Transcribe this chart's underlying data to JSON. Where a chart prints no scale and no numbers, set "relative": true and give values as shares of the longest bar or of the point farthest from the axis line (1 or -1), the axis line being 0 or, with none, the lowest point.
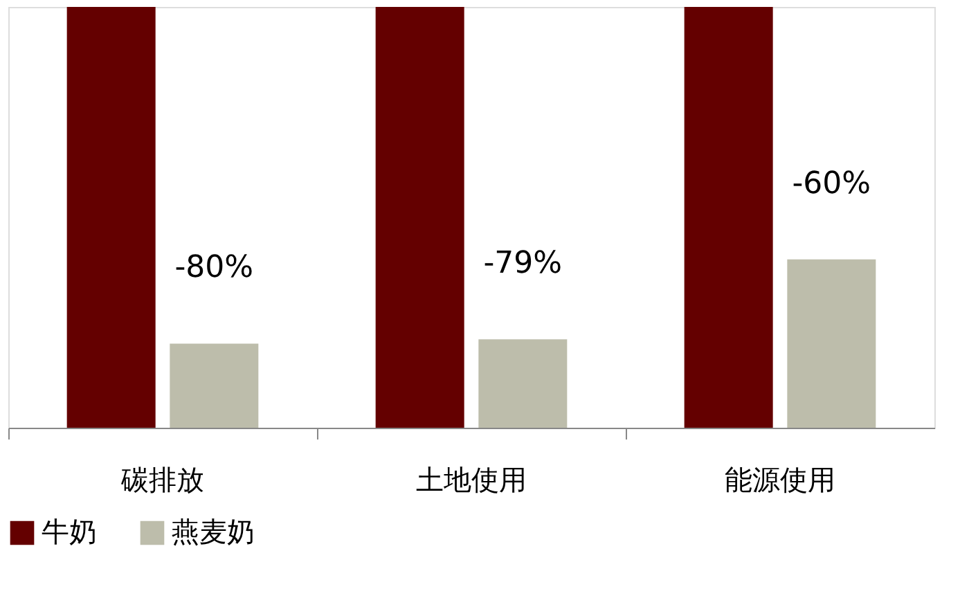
{
  "chart_data": {
    "type": "bar",
    "relative": true,
    "categories": [
      "碳排放",
      "土地使用",
      "能源使用"
    ],
    "series": [
      {
        "name": "牛奶",
        "color": "#640000",
        "values": [
          1,
          1,
          1
        ]
      },
      {
        "name": "燕麦奶",
        "color": "#bdbdab",
        "values": [
          0.2,
          0.21,
          0.4
        ]
      }
    ],
    "annotations": [
      "-80%",
      "-79%",
      "-60%"
    ],
    "legend": "bottom",
    "grid": false
  }
}
